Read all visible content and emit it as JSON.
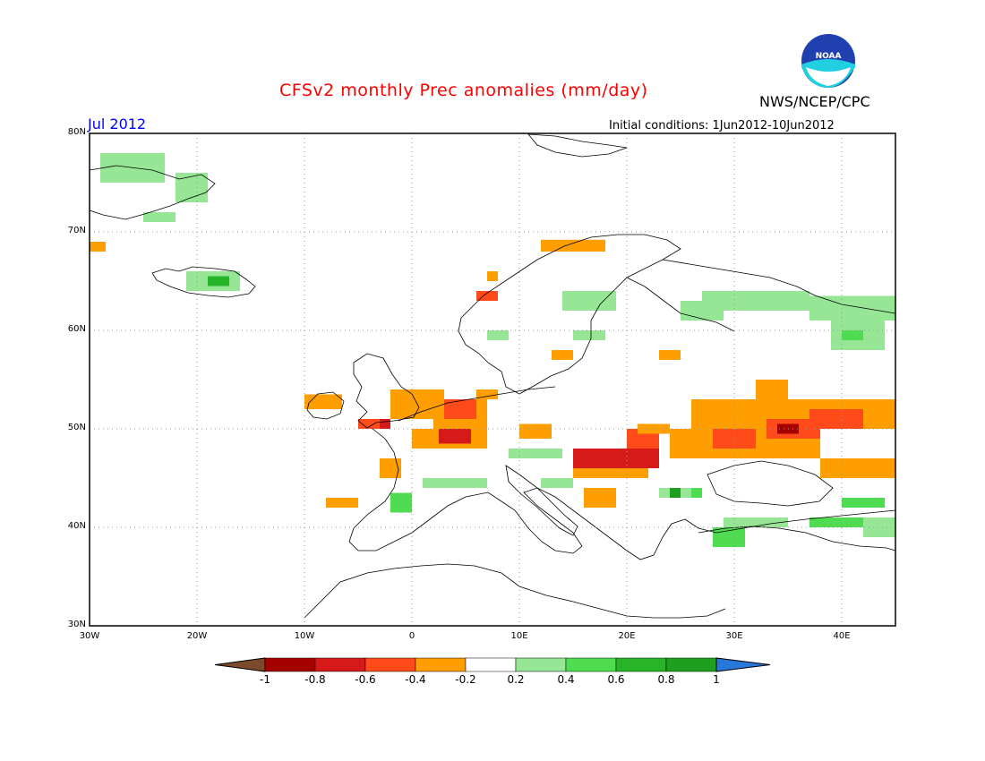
{
  "header": {
    "title": "CFSv2 monthly Prec anomalies (mm/day)",
    "month": "Jul 2012",
    "initial_conditions": "Initial conditions: 1Jun2012-10Jun2012",
    "agency": "NWS/NCEP/CPC",
    "logo_text": "NOAA"
  },
  "map": {
    "lon_range": [
      -30,
      45
    ],
    "lat_range": [
      30,
      80
    ],
    "lon_labels": [
      "30W",
      "20W",
      "10W",
      "0",
      "10E",
      "20E",
      "30E",
      "40E"
    ],
    "lon_values": [
      -30,
      -20,
      -10,
      0,
      10,
      20,
      30,
      40
    ],
    "lat_labels": [
      "30N",
      "40N",
      "50N",
      "60N",
      "70N",
      "80N"
    ],
    "lat_values": [
      30,
      40,
      50,
      60,
      70,
      80
    ],
    "grid": true
  },
  "colorbar": {
    "labels": [
      "-1",
      "-0.8",
      "-0.6",
      "-0.4",
      "-0.2",
      "0.2",
      "0.4",
      "0.6",
      "0.8",
      "1"
    ],
    "colors": [
      "#7a4a2a",
      "#a50000",
      "#d61a1a",
      "#ff4a1a",
      "#ff9e00",
      "#ffffff",
      "#96e696",
      "#50dc50",
      "#28b428",
      "#1ea01e",
      "#2878dc"
    ]
  },
  "anomaly_cells": [
    {
      "lon": -29,
      "lat": 75,
      "w": 6,
      "h": 3,
      "v": 0.3
    },
    {
      "lon": -22,
      "lat": 73,
      "w": 3,
      "h": 3,
      "v": 0.3
    },
    {
      "lon": -25,
      "lat": 71,
      "w": 3,
      "h": 1,
      "v": 0.3
    },
    {
      "lon": -30,
      "lat": 68,
      "w": 1.5,
      "h": 1,
      "v": -0.3
    },
    {
      "lon": -21,
      "lat": 64,
      "w": 5,
      "h": 2,
      "v": 0.3
    },
    {
      "lon": -19,
      "lat": 64.5,
      "w": 2,
      "h": 1,
      "v": 0.6
    },
    {
      "lon": 12,
      "lat": 68,
      "w": 6,
      "h": 1.2,
      "v": -0.3
    },
    {
      "lon": 6,
      "lat": 63,
      "w": 2,
      "h": 1,
      "v": -0.5
    },
    {
      "lon": 7,
      "lat": 65,
      "w": 1,
      "h": 1,
      "v": -0.3
    },
    {
      "lon": 14,
      "lat": 62,
      "w": 5,
      "h": 2,
      "v": 0.3
    },
    {
      "lon": 25,
      "lat": 61,
      "w": 4,
      "h": 2,
      "v": 0.3
    },
    {
      "lon": 27,
      "lat": 62,
      "w": 10,
      "h": 2,
      "v": 0.3
    },
    {
      "lon": 37,
      "lat": 61,
      "w": 8,
      "h": 2.5,
      "v": 0.3
    },
    {
      "lon": 39,
      "lat": 58,
      "w": 5,
      "h": 3,
      "v": 0.3
    },
    {
      "lon": 40,
      "lat": 59,
      "w": 2,
      "h": 1,
      "v": 0.5
    },
    {
      "lon": 7,
      "lat": 59,
      "w": 2,
      "h": 1,
      "v": 0.3
    },
    {
      "lon": 15,
      "lat": 59,
      "w": 3,
      "h": 1,
      "v": 0.3
    },
    {
      "lon": 13,
      "lat": 57,
      "w": 2,
      "h": 1,
      "v": -0.3
    },
    {
      "lon": 23,
      "lat": 57,
      "w": 2,
      "h": 1,
      "v": -0.3
    },
    {
      "lon": -10,
      "lat": 52,
      "w": 3.5,
      "h": 1.5,
      "v": -0.3
    },
    {
      "lon": -2,
      "lat": 51,
      "w": 5,
      "h": 3,
      "v": -0.3
    },
    {
      "lon": -5,
      "lat": 50,
      "w": 3,
      "h": 1,
      "v": -0.5
    },
    {
      "lon": -3,
      "lat": 50,
      "w": 1,
      "h": 1,
      "v": -0.6
    },
    {
      "lon": 2,
      "lat": 50,
      "w": 5,
      "h": 3,
      "v": -0.3
    },
    {
      "lon": 3,
      "lat": 51,
      "w": 3,
      "h": 2,
      "v": -0.5
    },
    {
      "lon": 0,
      "lat": 48,
      "w": 7,
      "h": 2,
      "v": -0.3
    },
    {
      "lon": 2.5,
      "lat": 48.5,
      "w": 3,
      "h": 1.5,
      "v": -0.6
    },
    {
      "lon": 6,
      "lat": 53,
      "w": 2,
      "h": 1,
      "v": -0.3
    },
    {
      "lon": -3,
      "lat": 45,
      "w": 2,
      "h": 2,
      "v": -0.3
    },
    {
      "lon": -8,
      "lat": 42,
      "w": 3,
      "h": 1,
      "v": -0.3
    },
    {
      "lon": -2,
      "lat": 41.5,
      "w": 2,
      "h": 2,
      "v": 0.4
    },
    {
      "lon": 1,
      "lat": 44,
      "w": 6,
      "h": 1,
      "v": 0.3
    },
    {
      "lon": 10,
      "lat": 49,
      "w": 3,
      "h": 1.5,
      "v": -0.3
    },
    {
      "lon": 9,
      "lat": 47,
      "w": 5,
      "h": 1,
      "v": 0.3
    },
    {
      "lon": 12,
      "lat": 44,
      "w": 3,
      "h": 1,
      "v": 0.3
    },
    {
      "lon": 15,
      "lat": 45,
      "w": 7,
      "h": 3,
      "v": -0.3
    },
    {
      "lon": 15,
      "lat": 46,
      "w": 8,
      "h": 2,
      "v": -0.6
    },
    {
      "lon": 20,
      "lat": 48,
      "w": 3,
      "h": 2,
      "v": -0.5
    },
    {
      "lon": 21,
      "lat": 49.5,
      "w": 3,
      "h": 1,
      "v": -0.3
    },
    {
      "lon": 16,
      "lat": 42,
      "w": 3,
      "h": 2,
      "v": -0.3
    },
    {
      "lon": 23,
      "lat": 43,
      "w": 4,
      "h": 1,
      "v": 0.3
    },
    {
      "lon": 24,
      "lat": 43,
      "w": 1,
      "h": 1,
      "v": 0.9
    },
    {
      "lon": 26,
      "lat": 43,
      "w": 1,
      "h": 1,
      "v": 0.5
    },
    {
      "lon": 24,
      "lat": 47,
      "w": 14,
      "h": 3,
      "v": -0.3
    },
    {
      "lon": 26,
      "lat": 50,
      "w": 19,
      "h": 3,
      "v": -0.3
    },
    {
      "lon": 28,
      "lat": 48,
      "w": 4,
      "h": 2,
      "v": -0.5
    },
    {
      "lon": 33,
      "lat": 49,
      "w": 5,
      "h": 2,
      "v": -0.5
    },
    {
      "lon": 34,
      "lat": 49.5,
      "w": 2,
      "h": 1,
      "v": -0.8
    },
    {
      "lon": 37,
      "lat": 50,
      "w": 5,
      "h": 2,
      "v": -0.5
    },
    {
      "lon": 32,
      "lat": 53,
      "w": 3,
      "h": 2,
      "v": -0.3
    },
    {
      "lon": 38,
      "lat": 45,
      "w": 7,
      "h": 2,
      "v": -0.3
    },
    {
      "lon": 40,
      "lat": 42,
      "w": 4,
      "h": 1,
      "v": 0.5
    },
    {
      "lon": 28,
      "lat": 38,
      "w": 3,
      "h": 2,
      "v": 0.4
    },
    {
      "lon": 29,
      "lat": 40,
      "w": 6,
      "h": 1,
      "v": 0.3
    },
    {
      "lon": 37,
      "lat": 40,
      "w": 6,
      "h": 1,
      "v": 0.4
    },
    {
      "lon": 42,
      "lat": 39,
      "w": 3,
      "h": 2,
      "v": 0.3
    }
  ]
}
